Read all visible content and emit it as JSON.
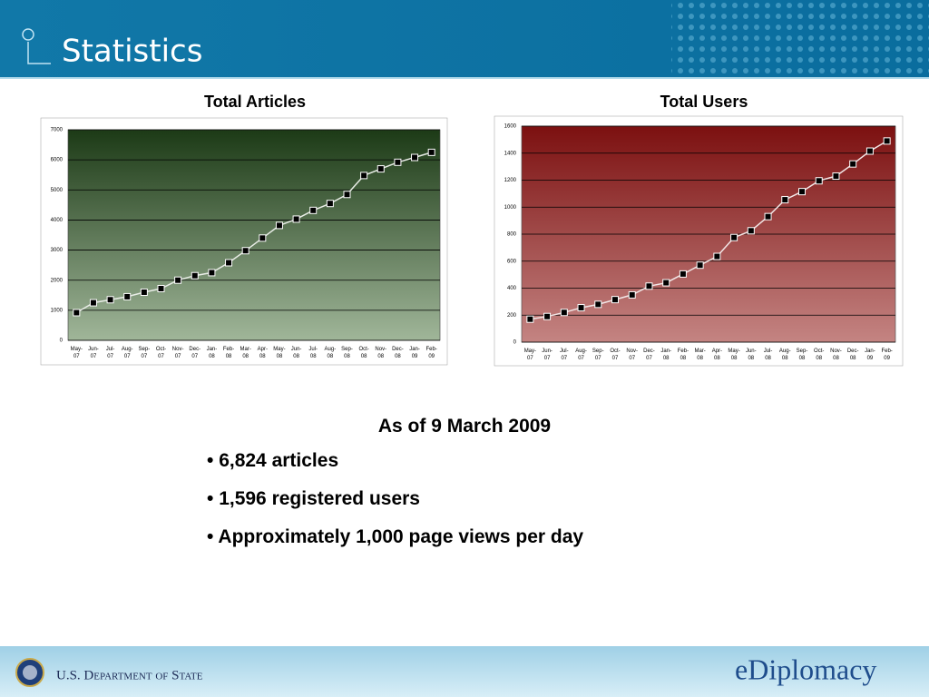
{
  "header": {
    "title": "Statistics"
  },
  "chart_data": [
    {
      "type": "line",
      "title": "Total Articles",
      "categories": [
        "May-07",
        "Jun-07",
        "Jul-07",
        "Aug-07",
        "Sep-07",
        "Oct-07",
        "Nov-07",
        "Dec-07",
        "Jan-08",
        "Feb-08",
        "Mar-08",
        "Apr-08",
        "May-08",
        "Jun-08",
        "Jul-08",
        "Aug-08",
        "Sep-08",
        "Oct-08",
        "Nov-08",
        "Dec-08",
        "Jan-09",
        "Feb-09"
      ],
      "values": [
        920,
        1250,
        1350,
        1450,
        1600,
        1720,
        2000,
        2150,
        2250,
        2580,
        2980,
        3400,
        3820,
        4030,
        4320,
        4550,
        4850,
        5480,
        5700,
        5920,
        6080,
        6250
      ],
      "color": "#e8ece6",
      "background": [
        "#1c3a16",
        "#a0b699"
      ],
      "ylim": [
        0,
        7000
      ],
      "yticks": [
        0,
        1000,
        2000,
        3000,
        4000,
        5000,
        6000,
        7000
      ],
      "grid": true
    },
    {
      "type": "line",
      "title": "Total Users",
      "categories": [
        "May-07",
        "Jun-07",
        "Jul-07",
        "Aug-07",
        "Sep-07",
        "Oct-07",
        "Nov-07",
        "Dec-07",
        "Jan-08",
        "Feb-08",
        "Mar-08",
        "Apr-08",
        "May-08",
        "Jun-08",
        "Jul-08",
        "Aug-08",
        "Sep-08",
        "Oct-08",
        "Nov-08",
        "Dec-08",
        "Jan-09",
        "Feb-09"
      ],
      "values": [
        170,
        190,
        220,
        255,
        280,
        315,
        350,
        415,
        440,
        505,
        570,
        635,
        775,
        825,
        930,
        1055,
        1115,
        1195,
        1230,
        1320,
        1415,
        1490
      ],
      "color": "#f2e6e6",
      "background": [
        "#7c1010",
        "#c48482"
      ],
      "ylim": [
        0,
        1600
      ],
      "yticks": [
        0,
        200,
        400,
        600,
        800,
        1000,
        1200,
        1400,
        1600
      ],
      "grid": true
    }
  ],
  "summary": {
    "heading": "As of  9 March 2009",
    "bullets": [
      "6,824 articles",
      "1,596 registered users",
      "Approximately 1,000 page views per day"
    ]
  },
  "footer": {
    "agency": "U.S. Department of State",
    "logo": "eDiplomacy"
  }
}
